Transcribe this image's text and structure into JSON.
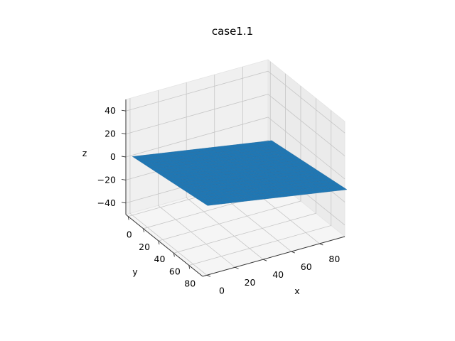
{
  "chart_data": {
    "type": "surface",
    "title": "case1.1",
    "xlabel": "x",
    "ylabel": "y",
    "zlabel": "z",
    "xlim": [
      -3,
      98
    ],
    "ylim": [
      -3,
      98
    ],
    "zlim": [
      -50,
      50
    ],
    "x_ticks": [
      0,
      20,
      40,
      60,
      80
    ],
    "y_ticks": [
      0,
      20,
      40,
      60,
      80
    ],
    "z_ticks": [
      -40,
      -20,
      0,
      20,
      40
    ],
    "grid": true,
    "surface": {
      "x_range": [
        0,
        99
      ],
      "y_range": [
        0,
        99
      ],
      "corner_z": {
        "x0_y0": 1,
        "x99_y0": 11,
        "x0_y99": -19,
        "x99_y99": -9
      },
      "color": "#1f77b4",
      "edge_color": "#2d6f9e"
    }
  }
}
